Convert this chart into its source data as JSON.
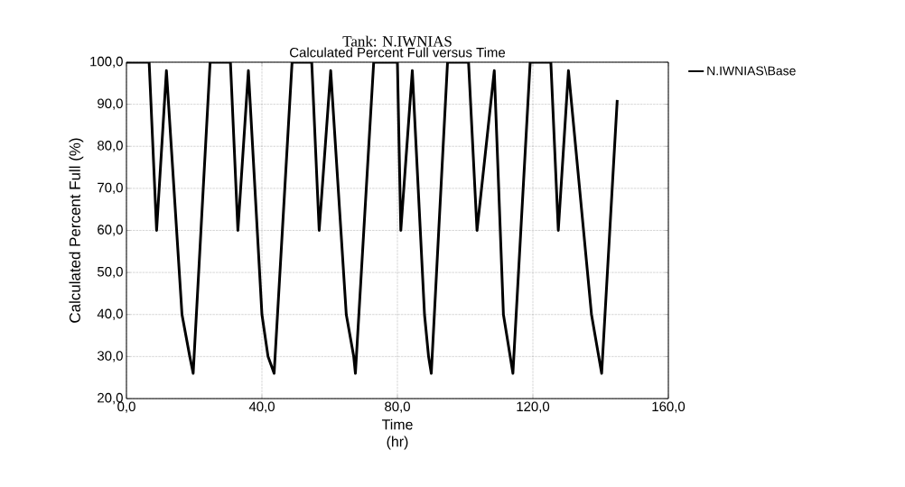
{
  "chart_data": {
    "type": "line",
    "title": "Tank: N.IWNIAS",
    "subtitle": "Calculated Percent Full versus Time",
    "xlabel": "Time (hr)",
    "ylabel": "Calculated Percent Full (%)",
    "xlim": [
      0,
      160
    ],
    "ylim": [
      20,
      100
    ],
    "xticks": [
      {
        "value": 0,
        "label": "0,0"
      },
      {
        "value": 40,
        "label": "40,0"
      },
      {
        "value": 80,
        "label": "80,0"
      },
      {
        "value": 120,
        "label": "120,0"
      },
      {
        "value": 160,
        "label": "160,0"
      }
    ],
    "yticks": [
      {
        "value": 20,
        "label": "20,0"
      },
      {
        "value": 30,
        "label": "30,0"
      },
      {
        "value": 40,
        "label": "40,0"
      },
      {
        "value": 50,
        "label": "50,0"
      },
      {
        "value": 60,
        "label": "60,0"
      },
      {
        "value": 70,
        "label": "70,0"
      },
      {
        "value": 80,
        "label": "80,0"
      },
      {
        "value": 90,
        "label": "90,0"
      },
      {
        "value": 100,
        "label": "100,0"
      }
    ],
    "grid": true,
    "legend": "top right",
    "marker": "none",
    "line_style": "solid",
    "series": [
      {
        "name": "N.IWNIAS\\Base",
        "color": "#000000",
        "x": [
          0,
          6.7,
          8.9,
          11.8,
          16.4,
          18.7,
          19.7,
          24.7,
          30.7,
          32.9,
          36,
          40,
          41.8,
          43.6,
          48.9,
          54.7,
          56.9,
          60.3,
          64.9,
          67.1,
          67.6,
          73,
          80,
          81,
          84.4,
          88,
          89.2,
          90,
          94.8,
          101,
          103.5,
          108.6,
          111.3,
          113.3,
          114.1,
          119.2,
          125.3,
          127.5,
          130.5,
          137.3,
          140.3,
          144.9
        ],
        "values": [
          100,
          100,
          60,
          98,
          40,
          30,
          26,
          100,
          100,
          60,
          98,
          40,
          30,
          26,
          100,
          100,
          60,
          98,
          40,
          30,
          26,
          100,
          100,
          60,
          98,
          40,
          30,
          26,
          100,
          100,
          60,
          98,
          40,
          30,
          26,
          100,
          100,
          60,
          98,
          40,
          26,
          91
        ]
      }
    ]
  }
}
